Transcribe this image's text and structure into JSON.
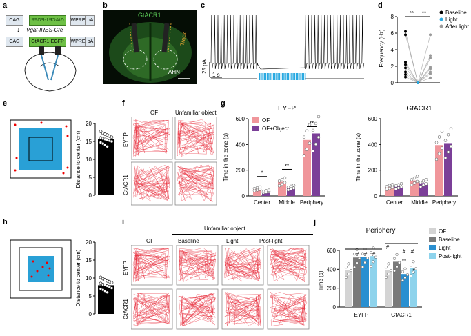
{
  "labels": {
    "a": "a",
    "b": "b",
    "c": "c",
    "d": "d",
    "e": "e",
    "f": "f",
    "g": "g",
    "h": "h",
    "i": "i",
    "j": "j"
  },
  "panel_a": {
    "cag1": "CAG",
    "construct_mid": "GtACR1-EGFP",
    "wpre": "WPRE",
    "pa": "pA",
    "cre": "Vgat-IRES-Cre",
    "cag2": "CAG",
    "construct2": "GtACR1-EGFP",
    "wpre2": "WPRE",
    "pa2": "pA"
  },
  "panel_b": {
    "title": "GtACR1",
    "track": "Track",
    "region": "AHN"
  },
  "panel_c": {
    "scale_y": "25 pA",
    "scale_x": "1 s"
  },
  "panel_d": {
    "chart_data": {
      "type": "scatter",
      "ylabel": "Frequency (Hz)",
      "yticks": [
        "0",
        "2",
        "4",
        "6",
        "8"
      ],
      "ylim": [
        0,
        8
      ],
      "conditions": [
        "Baseline",
        "Light",
        "After light"
      ],
      "colors": [
        "#000000",
        "#29a9e1",
        "#9a9a9a"
      ],
      "baseline": [
        6.2,
        5.8,
        2.5,
        2.2,
        1.8,
        1.3,
        1.0,
        0.7
      ],
      "light": [
        0,
        0,
        0,
        0,
        0,
        0,
        0,
        0
      ],
      "after_light": [
        5.8,
        3.3,
        3.0,
        1.9,
        1.7,
        1.3,
        1.1,
        0.6
      ],
      "significance": [
        "**",
        "**"
      ]
    }
  },
  "panel_e": {
    "chart_data": {
      "type": "bar",
      "ylabel": "Distance to center (cm)",
      "yticks": [
        "0",
        "5",
        "10",
        "15",
        "20"
      ],
      "ylim": [
        0,
        20
      ],
      "value": 15.7,
      "points": [
        17.8,
        17.3,
        17.0,
        16.8,
        16.5,
        16.2,
        16.0,
        15.8,
        15.6,
        15.4,
        15.2,
        15.0,
        14.7,
        14.4,
        14.0,
        13.6
      ]
    }
  },
  "panel_f": {
    "col1": "OF",
    "col2": "Unfamiliar object",
    "row1": "EYFP",
    "row2": "GtACR1"
  },
  "panel_g": {
    "chart_data": [
      {
        "type": "bar",
        "title": "EYFP",
        "ylabel": "Time in the zone (s)",
        "yticks": [
          "0",
          "200",
          "400",
          "600"
        ],
        "ylim": [
          0,
          600
        ],
        "categories": [
          "Center",
          "Middle",
          "Periphery"
        ],
        "series": [
          {
            "name": "OF",
            "color": "#f0969b",
            "values": [
              55,
              110,
              435
            ]
          },
          {
            "name": "OF+Object",
            "color": "#7b3f98",
            "values": [
              35,
              65,
              485
            ]
          }
        ],
        "significance": [
          "*",
          "**",
          "**"
        ]
      },
      {
        "type": "bar",
        "title": "GtACR1",
        "ylabel": "Time in the zone (s)",
        "yticks": [
          "0",
          "200",
          "400",
          "600"
        ],
        "ylim": [
          0,
          600
        ],
        "categories": [
          "Center",
          "Middle",
          "Periphery"
        ],
        "series": [
          {
            "name": "OF",
            "color": "#f0969b",
            "values": [
              70,
              120,
              395
            ]
          },
          {
            "name": "OF+Object",
            "color": "#7b3f98",
            "values": [
              75,
              100,
              410
            ]
          }
        ]
      }
    ]
  },
  "panel_h": {
    "chart_data": {
      "type": "bar",
      "ylabel": "Distance to center (cm)",
      "yticks": [
        "0",
        "5",
        "10",
        "15",
        "20"
      ],
      "ylim": [
        0,
        20
      ],
      "value": 8.0,
      "points": [
        10.2,
        9.8,
        9.5,
        9.2,
        9.0,
        8.7,
        8.5,
        8.2,
        8.0,
        7.8,
        7.5,
        7.2,
        7.0,
        6.7,
        6.4,
        6.0
      ]
    }
  },
  "panel_i": {
    "header": "Unfamiliar object",
    "col1": "OF",
    "col2": "Baseline",
    "col3": "Light",
    "col4": "Post-light",
    "row1": "EYFP",
    "row2": "GtACR1"
  },
  "panel_j": {
    "chart_data": {
      "type": "bar",
      "title": "Periphery",
      "ylabel": "Time (s)",
      "yticks": [
        "0",
        "200",
        "400",
        "600"
      ],
      "ylim": [
        0,
        600
      ],
      "categories": [
        "EYFP",
        "GtACR1"
      ],
      "series": [
        {
          "name": "OF",
          "color": "#d4d4d4",
          "values": [
            395,
            395
          ]
        },
        {
          "name": "Baseline",
          "color": "#7a7a7a",
          "values": [
            525,
            480
          ]
        },
        {
          "name": "Light",
          "color": "#2a8fd0",
          "values": [
            530,
            350
          ]
        },
        {
          "name": "Post-light",
          "color": "#8ed3ec",
          "values": [
            540,
            415
          ]
        }
      ],
      "significance": [
        "#",
        "#",
        "#",
        "#",
        "#",
        "#",
        "**",
        "*"
      ]
    }
  }
}
